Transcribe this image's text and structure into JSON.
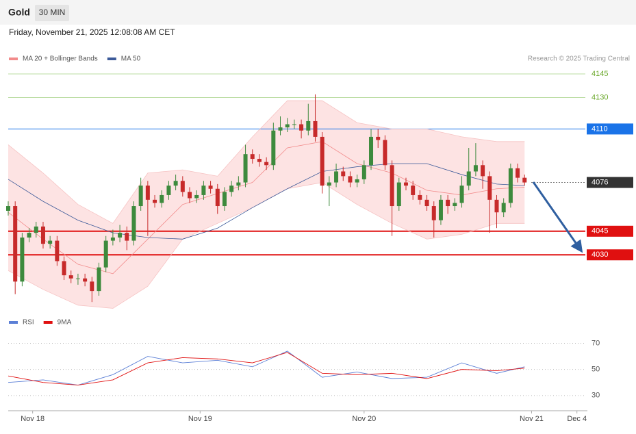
{
  "header": {
    "title": "Gold",
    "interval": "30 MIN",
    "datetime": "Friday, November 21, 2025 12:08:08 AM CET"
  },
  "chart_data": [
    {
      "type": "candlestick",
      "source": "Research © 2025 Trading Central",
      "xlim": [
        0,
        166
      ],
      "ylim": [
        3994,
        4155
      ],
      "up_color": "#3d8a3d",
      "down_color": "#c72a2a",
      "x": [
        0,
        2,
        4,
        6,
        8,
        10,
        12,
        14,
        16,
        18,
        20,
        22,
        24,
        26,
        28,
        30,
        32,
        34,
        36,
        38,
        40,
        42,
        44,
        46,
        48,
        50,
        52,
        54,
        56,
        58,
        60,
        62,
        64,
        66,
        68,
        70,
        72,
        74,
        76,
        78,
        80,
        82,
        84,
        86,
        88,
        90,
        92,
        94,
        96,
        98,
        100,
        102,
        104,
        106,
        108,
        110,
        112,
        114,
        116,
        118,
        120,
        122,
        124,
        126,
        128,
        130,
        132,
        134,
        136,
        138,
        140,
        142,
        144,
        146,
        148
      ],
      "open": [
        4058,
        4061,
        4013,
        4041,
        4044,
        4048,
        4037,
        4039,
        4026,
        4017,
        4015,
        4015,
        4013,
        4007,
        4022,
        4039,
        4041,
        4044,
        4039,
        4061,
        4074,
        4065,
        4063,
        4068,
        4074,
        4077,
        4070,
        4066,
        4068,
        4074,
        4072,
        4061,
        4070,
        4074,
        4076,
        4094,
        4091,
        4089,
        4087,
        4109,
        4111,
        4113,
        4113,
        4109,
        4115,
        4105,
        4074,
        4076,
        4083,
        4080,
        4076,
        4078,
        4087,
        4105,
        4103,
        4087,
        4061,
        4076,
        4074,
        4068,
        4065,
        4061,
        4052,
        4065,
        4061,
        4063,
        4074,
        4083,
        4087,
        4080,
        4065,
        4057,
        4063,
        4085,
        4079
      ],
      "high": [
        4064,
        4064,
        4044,
        4047,
        4051,
        4051,
        4042,
        4042,
        4029,
        4020,
        4018,
        4018,
        4016,
        4025,
        4042,
        4046,
        4049,
        4048,
        4064,
        4079,
        4077,
        4068,
        4071,
        4077,
        4081,
        4080,
        4073,
        4071,
        4077,
        4077,
        4075,
        4073,
        4077,
        4080,
        4100,
        4097,
        4094,
        4092,
        4114,
        4118,
        4117,
        4116,
        4116,
        4126,
        4132,
        4108,
        4080,
        4088,
        4086,
        4083,
        4081,
        4090,
        4110,
        4110,
        4106,
        4090,
        4079,
        4079,
        4077,
        4071,
        4068,
        4064,
        4068,
        4068,
        4066,
        4080,
        4098,
        4101,
        4090,
        4083,
        4068,
        4066,
        4088,
        4088,
        4081
      ],
      "low": [
        4055,
        4005,
        4010,
        4038,
        4041,
        4034,
        4034,
        4023,
        4014,
        4012,
        4011,
        4010,
        4000,
        4004,
        4019,
        4036,
        4038,
        4033,
        4036,
        4058,
        4042,
        4060,
        4060,
        4065,
        4071,
        4067,
        4063,
        4063,
        4065,
        4069,
        4056,
        4058,
        4067,
        4071,
        4073,
        4088,
        4086,
        4084,
        4084,
        4106,
        4108,
        4110,
        4104,
        4106,
        4102,
        4069,
        4061,
        4073,
        4077,
        4073,
        4073,
        4075,
        4084,
        4098,
        4084,
        4042,
        4058,
        4071,
        4065,
        4062,
        4058,
        4041,
        4049,
        4056,
        4058,
        4060,
        4071,
        4080,
        4072,
        4044,
        4047,
        4054,
        4060,
        4076,
        4074
      ],
      "close": [
        4061,
        4013,
        4041,
        4044,
        4048,
        4037,
        4039,
        4026,
        4017,
        4015,
        4015,
        4013,
        4007,
        4022,
        4039,
        4041,
        4044,
        4039,
        4061,
        4074,
        4065,
        4063,
        4068,
        4074,
        4077,
        4070,
        4066,
        4068,
        4074,
        4072,
        4061,
        4070,
        4074,
        4076,
        4094,
        4091,
        4089,
        4087,
        4109,
        4111,
        4113,
        4113,
        4109,
        4115,
        4105,
        4074,
        4076,
        4083,
        4080,
        4076,
        4078,
        4087,
        4105,
        4103,
        4087,
        4061,
        4076,
        4074,
        4068,
        4065,
        4061,
        4052,
        4065,
        4061,
        4063,
        4074,
        4083,
        4087,
        4080,
        4065,
        4057,
        4063,
        4085,
        4079,
        4076
      ],
      "series": [
        {
          "name": "MA 20 + Bollinger Bands",
          "color": "#f28b8b",
          "band_color": "#fde3e3",
          "x": [
            0,
            10,
            20,
            30,
            40,
            50,
            60,
            70,
            80,
            90,
            100,
            110,
            120,
            130,
            140,
            148
          ],
          "values": [
            4057,
            4040,
            4024,
            4018,
            4040,
            4062,
            4069,
            4076,
            4098,
            4102,
            4088,
            4082,
            4071,
            4068,
            4072,
            4073
          ],
          "upper": [
            4100,
            4082,
            4062,
            4050,
            4082,
            4084,
            4080,
            4105,
            4128,
            4128,
            4114,
            4110,
            4110,
            4105,
            4102,
            4102
          ],
          "lower": [
            4020,
            4008,
            3998,
            3996,
            4010,
            4040,
            4050,
            4060,
            4072,
            4076,
            4062,
            4050,
            4040,
            4043,
            4050,
            4050
          ]
        },
        {
          "name": "MA 50",
          "color": "#3c5a99",
          "x": [
            0,
            10,
            20,
            30,
            40,
            50,
            60,
            70,
            80,
            90,
            100,
            110,
            120,
            130,
            140,
            148
          ],
          "values": [
            4078,
            4064,
            4052,
            4044,
            4041,
            4040,
            4047,
            4060,
            4072,
            4083,
            4086,
            4088,
            4088,
            4081,
            4075,
            4074
          ]
        }
      ],
      "levels": [
        {
          "value": 4145,
          "color": "#6aa82a",
          "style": "text"
        },
        {
          "value": 4130,
          "color": "#6aa82a",
          "style": "text"
        },
        {
          "value": 4110,
          "color": "#1a73e8",
          "style": "box"
        },
        {
          "value": 4076,
          "color": "#333333",
          "style": "dotted"
        },
        {
          "value": 4045,
          "color": "#e01010",
          "style": "box"
        },
        {
          "value": 4030,
          "color": "#e01010",
          "style": "box"
        }
      ]
    },
    {
      "type": "line",
      "xlim": [
        0,
        166
      ],
      "ylim": [
        21,
        76
      ],
      "yticks": [
        30,
        50,
        70
      ],
      "grid": true,
      "xticks": [
        {
          "value": 7,
          "label": "Nov 18"
        },
        {
          "value": 55,
          "label": "Nov 19"
        },
        {
          "value": 102,
          "label": "Nov 20"
        },
        {
          "value": 150,
          "label": "Nov 21"
        },
        {
          "value": 163,
          "label": "Dec 4"
        }
      ],
      "series": [
        {
          "name": "RSI",
          "color": "#5b7fd6",
          "x": [
            0,
            10,
            20,
            30,
            40,
            50,
            60,
            70,
            80,
            90,
            100,
            110,
            120,
            130,
            140,
            148
          ],
          "values": [
            40,
            42,
            38,
            46,
            60,
            55,
            57,
            52,
            64,
            44,
            48,
            43,
            44,
            55,
            47,
            52
          ]
        },
        {
          "name": "9MA",
          "color": "#e01010",
          "x": [
            0,
            10,
            20,
            30,
            40,
            50,
            60,
            70,
            80,
            90,
            100,
            110,
            120,
            130,
            140,
            148
          ],
          "values": [
            45,
            40,
            38,
            42,
            55,
            59,
            58,
            55,
            63,
            47,
            46,
            47,
            43,
            50,
            49,
            51
          ]
        }
      ]
    }
  ]
}
